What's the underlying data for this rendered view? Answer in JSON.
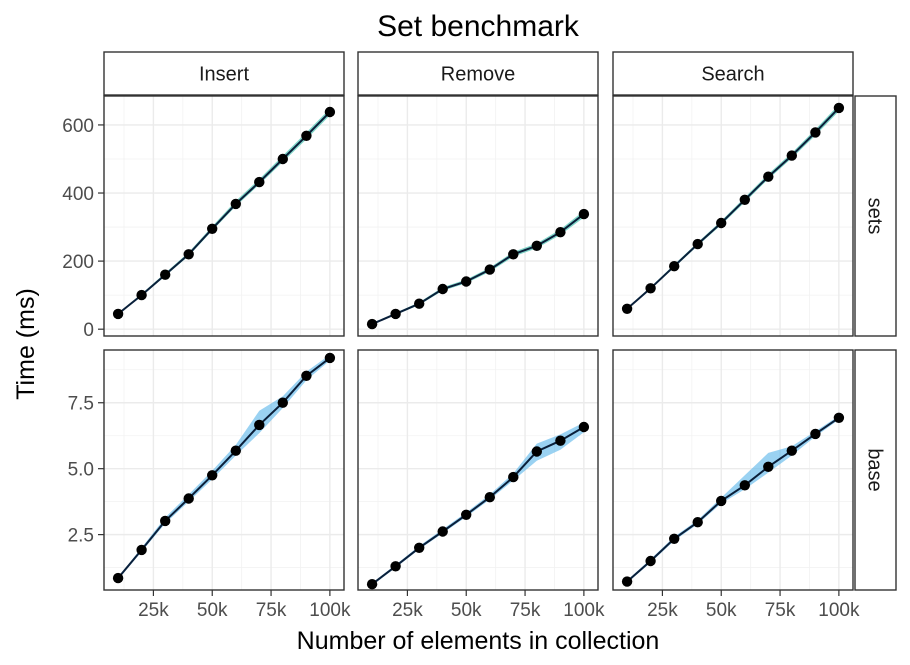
{
  "chart_data": {
    "type": "line",
    "title": "Set benchmark",
    "xlabel": "Number of elements in collection",
    "ylabel": "Time (ms)",
    "grid": true,
    "legend": "none",
    "colors": {
      "band": "#56b4e9",
      "band_teal": "#2fb9a5",
      "line": "#0a1f3a",
      "point": "#000000"
    },
    "x": [
      10000,
      20000,
      30000,
      40000,
      50000,
      60000,
      70000,
      80000,
      90000,
      100000
    ],
    "xlim": [
      4000,
      106000
    ],
    "x_ticks": [
      25000,
      50000,
      75000,
      100000
    ],
    "x_tick_labels": [
      "25k",
      "50k",
      "75k",
      "100k"
    ],
    "columns": [
      "Insert",
      "Remove",
      "Search"
    ],
    "rows": [
      {
        "label": "sets",
        "ylim": [
          -20,
          685
        ],
        "y_ticks": [
          0,
          200,
          400,
          600
        ],
        "y_tick_labels": [
          "0",
          "200",
          "400",
          "600"
        ]
      },
      {
        "label": "base",
        "ylim": [
          0.4,
          9.5
        ],
        "y_ticks": [
          2.5,
          5.0,
          7.5
        ],
        "y_tick_labels": [
          "2.5",
          "5.0",
          "7.5"
        ]
      }
    ],
    "panels": [
      {
        "row": "sets",
        "column": "Insert",
        "values": [
          45,
          100,
          160,
          220,
          295,
          368,
          432,
          500,
          568,
          638
        ],
        "lower": [
          43,
          97,
          156,
          215,
          289,
          361,
          425,
          491,
          558,
          628
        ],
        "upper": [
          48,
          104,
          165,
          226,
          302,
          377,
          441,
          510,
          578,
          648
        ]
      },
      {
        "row": "sets",
        "column": "Remove",
        "values": [
          15,
          45,
          75,
          118,
          140,
          175,
          220,
          245,
          285,
          338
        ],
        "lower": [
          13,
          42,
          71,
          113,
          135,
          169,
          213,
          238,
          277,
          328
        ],
        "upper": [
          18,
          48,
          79,
          123,
          146,
          181,
          227,
          252,
          293,
          348
        ]
      },
      {
        "row": "sets",
        "column": "Search",
        "values": [
          60,
          120,
          185,
          250,
          312,
          380,
          448,
          510,
          578,
          650
        ],
        "lower": [
          58,
          117,
          181,
          245,
          306,
          373,
          441,
          502,
          569,
          640
        ],
        "upper": [
          63,
          124,
          190,
          255,
          318,
          387,
          456,
          518,
          587,
          660
        ]
      },
      {
        "row": "base",
        "column": "Insert",
        "values": [
          0.85,
          1.92,
          3.02,
          3.87,
          4.75,
          5.68,
          6.66,
          7.5,
          8.52,
          9.2
        ],
        "lower": [
          0.8,
          1.85,
          2.92,
          3.75,
          4.6,
          5.5,
          6.35,
          7.3,
          8.35,
          9.1
        ],
        "upper": [
          0.9,
          2.0,
          3.15,
          4.02,
          4.92,
          5.9,
          7.2,
          7.75,
          8.68,
          9.32
        ]
      },
      {
        "row": "base",
        "column": "Remove",
        "values": [
          0.62,
          1.3,
          2.0,
          2.62,
          3.25,
          3.92,
          4.68,
          5.65,
          6.06,
          6.58
        ],
        "lower": [
          0.57,
          1.24,
          1.94,
          2.55,
          3.17,
          3.83,
          4.55,
          5.3,
          5.72,
          6.38
        ],
        "upper": [
          0.67,
          1.36,
          2.07,
          2.7,
          3.34,
          4.02,
          4.82,
          5.95,
          6.3,
          6.75
        ]
      },
      {
        "row": "base",
        "column": "Search",
        "values": [
          0.72,
          1.5,
          2.34,
          2.97,
          3.78,
          4.37,
          5.07,
          5.68,
          6.32,
          6.93
        ],
        "lower": [
          0.67,
          1.44,
          2.27,
          2.9,
          3.68,
          4.22,
          4.85,
          5.5,
          6.22,
          6.86
        ],
        "upper": [
          0.77,
          1.57,
          2.42,
          3.05,
          3.9,
          4.75,
          5.6,
          5.85,
          6.42,
          7.0
        ]
      }
    ]
  }
}
